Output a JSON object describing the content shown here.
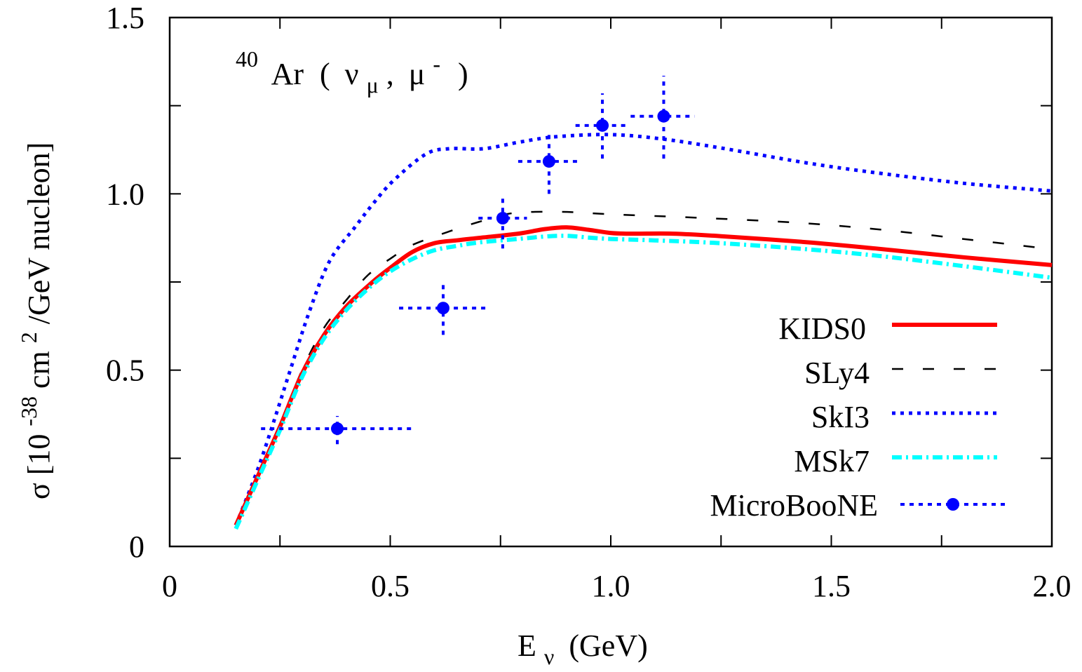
{
  "chart_data": {
    "type": "line",
    "title": "",
    "annotation": {
      "mass_number": "40",
      "nucleus": "Ar",
      "open_paren": "(",
      "nu": "ν",
      "nu_sub": "μ",
      "comma": ",",
      "mu": "μ",
      "mu_sup": "-",
      "close_paren": ")"
    },
    "xlabel": {
      "main": "E",
      "sub": "ν",
      "unit": "(GeV)"
    },
    "ylabel": {
      "prefix": "σ [10",
      "exp": "-38",
      "mid": " cm",
      "exp2": "2",
      "suffix": "/GeV nucleon]"
    },
    "xlim": [
      0,
      2.0
    ],
    "ylim": [
      0,
      1.5
    ],
    "xticks": [
      {
        "value": 0,
        "label": "0"
      },
      {
        "value": 0.25,
        "label": ""
      },
      {
        "value": 0.5,
        "label": "0.5"
      },
      {
        "value": 0.75,
        "label": ""
      },
      {
        "value": 1.0,
        "label": "1.0"
      },
      {
        "value": 1.25,
        "label": ""
      },
      {
        "value": 1.5,
        "label": "1.5"
      },
      {
        "value": 1.75,
        "label": ""
      },
      {
        "value": 2.0,
        "label": "2.0"
      }
    ],
    "yticks": [
      {
        "value": 0,
        "label": "0"
      },
      {
        "value": 0.25,
        "label": ""
      },
      {
        "value": 0.5,
        "label": "0.5"
      },
      {
        "value": 0.75,
        "label": ""
      },
      {
        "value": 1.0,
        "label": "1.0"
      },
      {
        "value": 1.25,
        "label": ""
      },
      {
        "value": 1.5,
        "label": "1.5"
      }
    ],
    "grid": false,
    "legend_position": "bottom-right",
    "series": [
      {
        "name": "KIDS0",
        "style": "solid",
        "color": "#ff0000",
        "x": [
          0.15,
          0.2,
          0.25,
          0.3,
          0.35,
          0.4,
          0.46,
          0.5,
          0.55,
          0.6,
          0.65,
          0.7,
          0.79,
          0.85,
          0.9,
          0.95,
          1.0,
          1.05,
          1.14,
          1.25,
          1.443,
          1.6,
          1.8,
          2.0
        ],
        "y": [
          0.06,
          0.2,
          0.34,
          0.49,
          0.6,
          0.68,
          0.75,
          0.79,
          0.835,
          0.86,
          0.868,
          0.875,
          0.887,
          0.9,
          0.905,
          0.898,
          0.889,
          0.887,
          0.887,
          0.88,
          0.863,
          0.845,
          0.82,
          0.798
        ]
      },
      {
        "name": "SLy4",
        "style": "dashed",
        "color": "#000000",
        "x": [
          0.15,
          0.2,
          0.25,
          0.3,
          0.35,
          0.4,
          0.45,
          0.505,
          0.55,
          0.633,
          0.7,
          0.776,
          0.887,
          1.0,
          1.2,
          1.41,
          1.6,
          1.8,
          2.0
        ],
        "y": [
          0.06,
          0.2,
          0.345,
          0.5,
          0.62,
          0.698,
          0.77,
          0.82,
          0.855,
          0.893,
          0.92,
          0.945,
          0.949,
          0.942,
          0.932,
          0.919,
          0.9,
          0.872,
          0.843
        ]
      },
      {
        "name": "SkI3",
        "style": "dotted",
        "color": "#0000ff",
        "x": [
          0.15,
          0.2,
          0.24,
          0.272,
          0.315,
          0.362,
          0.421,
          0.458,
          0.506,
          0.58,
          0.633,
          0.712,
          0.79,
          0.876,
          1.0,
          1.12,
          1.25,
          1.443,
          1.6,
          1.8,
          2.0
        ],
        "y": [
          0.06,
          0.22,
          0.37,
          0.495,
          0.66,
          0.808,
          0.907,
          0.967,
          1.036,
          1.112,
          1.128,
          1.128,
          1.146,
          1.162,
          1.168,
          1.155,
          1.13,
          1.088,
          1.06,
          1.03,
          1.008
        ]
      },
      {
        "name": "MSk7",
        "style": "dash-dot",
        "color": "#00ffff",
        "x": [
          0.15,
          0.2,
          0.25,
          0.3,
          0.35,
          0.4,
          0.458,
          0.5,
          0.55,
          0.6,
          0.65,
          0.7,
          0.79,
          0.85,
          0.9,
          0.95,
          1.0,
          1.1,
          1.25,
          1.443,
          1.6,
          1.8,
          2.0
        ],
        "y": [
          0.05,
          0.19,
          0.33,
          0.48,
          0.59,
          0.67,
          0.74,
          0.78,
          0.815,
          0.84,
          0.852,
          0.862,
          0.872,
          0.879,
          0.881,
          0.876,
          0.872,
          0.868,
          0.86,
          0.843,
          0.825,
          0.795,
          0.762
        ]
      }
    ],
    "data_points": {
      "name": "MicroBooNE",
      "color": "#0000ff",
      "points": [
        {
          "x": 0.38,
          "y": 0.334,
          "xerr": [
            0.207,
            0.55
          ],
          "yerr": [
            0.29,
            0.37
          ]
        },
        {
          "x": 0.62,
          "y": 0.676,
          "xerr": [
            0.52,
            0.72
          ],
          "yerr": [
            0.6,
            0.75
          ]
        },
        {
          "x": 0.755,
          "y": 0.931,
          "xerr": [
            0.7,
            0.81
          ],
          "yerr": [
            0.845,
            1.0
          ]
        },
        {
          "x": 0.86,
          "y": 1.092,
          "xerr": [
            0.79,
            0.93
          ],
          "yerr": [
            1.0,
            1.18
          ]
        },
        {
          "x": 0.981,
          "y": 1.194,
          "xerr": [
            0.92,
            1.04
          ],
          "yerr": [
            1.1,
            1.285
          ]
        },
        {
          "x": 1.12,
          "y": 1.22,
          "xerr": [
            1.045,
            1.19
          ],
          "yerr": [
            1.1,
            1.335
          ]
        }
      ]
    },
    "legend": [
      {
        "label": "KIDS0",
        "style": "solid",
        "color": "#ff0000"
      },
      {
        "label": "SLy4",
        "style": "dashed",
        "color": "#000000"
      },
      {
        "label": "SkI3",
        "style": "dotted",
        "color": "#0000ff"
      },
      {
        "label": "MSk7",
        "style": "dash-dot",
        "color": "#00ffff"
      },
      {
        "label": "MicroBooNE",
        "style": "points",
        "color": "#0000ff"
      }
    ]
  }
}
